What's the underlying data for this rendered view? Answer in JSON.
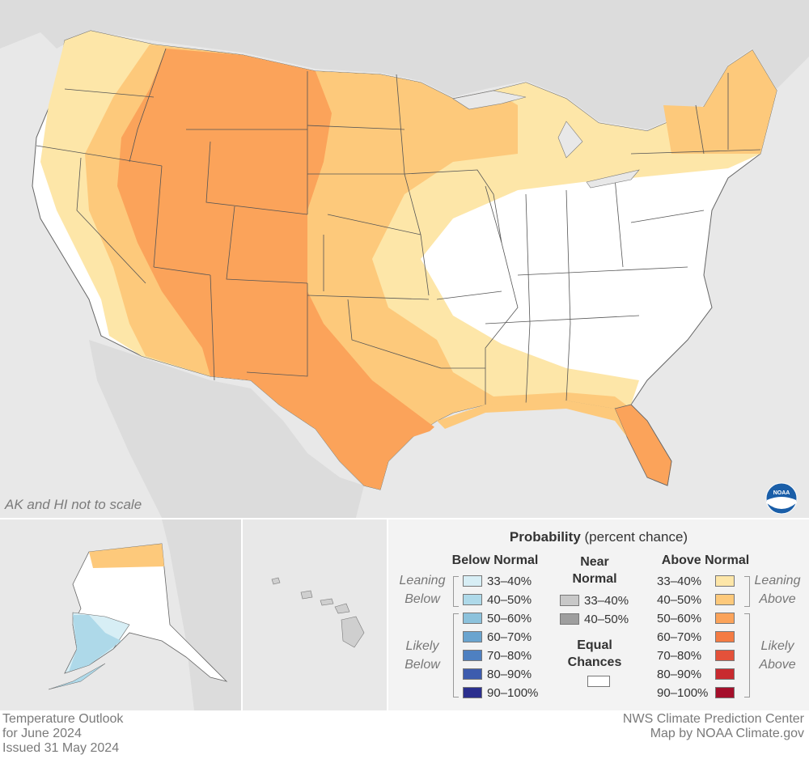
{
  "map": {
    "scale_note": "AK and HI not to scale",
    "logo_text": "NOAA"
  },
  "legend": {
    "title_bold": "Probability",
    "title_rest": " (percent chance)",
    "below": {
      "heading": "Below Normal",
      "leaning_label_1": "Leaning",
      "leaning_label_2": "Below",
      "likely_label_1": "Likely",
      "likely_label_2": "Below",
      "items": [
        {
          "label": "33–40%",
          "color": "#d7eef5"
        },
        {
          "label": "40–50%",
          "color": "#aed9e9"
        },
        {
          "label": "50–60%",
          "color": "#8cc2dc"
        },
        {
          "label": "60–70%",
          "color": "#6aa4cf"
        },
        {
          "label": "70–80%",
          "color": "#4e80c1"
        },
        {
          "label": "80–90%",
          "color": "#3d5cae"
        },
        {
          "label": "90–100%",
          "color": "#2b2f8e"
        }
      ]
    },
    "near": {
      "heading_1": "Near",
      "heading_2": "Normal",
      "items": [
        {
          "label": "33–40%",
          "color": "#c8c8c8"
        },
        {
          "label": "40–50%",
          "color": "#9e9e9e"
        }
      ],
      "equal_1": "Equal",
      "equal_2": "Chances",
      "equal_color": "#ffffff"
    },
    "above": {
      "heading": "Above Normal",
      "leaning_label_1": "Leaning",
      "leaning_label_2": "Above",
      "likely_label_1": "Likely",
      "likely_label_2": "Above",
      "items": [
        {
          "label": "33–40%",
          "color": "#fde6a8"
        },
        {
          "label": "40–50%",
          "color": "#fdc97b"
        },
        {
          "label": "50–60%",
          "color": "#fba35a"
        },
        {
          "label": "60–70%",
          "color": "#f47b43"
        },
        {
          "label": "70–80%",
          "color": "#e4513a"
        },
        {
          "label": "80–90%",
          "color": "#c82a2f"
        },
        {
          "label": "90–100%",
          "color": "#a50f2b"
        }
      ]
    }
  },
  "footer": {
    "line1": "Temperature Outlook",
    "line2": "for June 2024",
    "line3": "Issued 31 May 2024",
    "credit1": "NWS Climate Prediction Center",
    "credit2": "Map by NOAA Climate.gov"
  }
}
